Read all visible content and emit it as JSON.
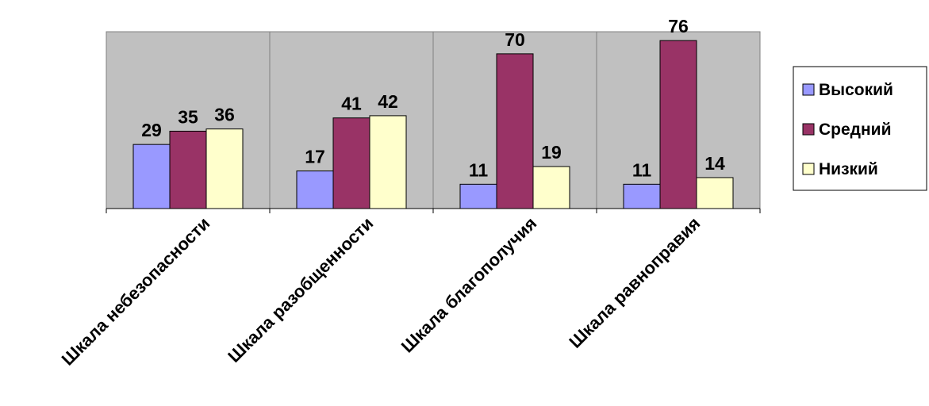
{
  "chart_data": {
    "type": "bar",
    "categories": [
      "Шкала небезопасности",
      "Шкала разобщенности",
      "Шкала благополучия",
      "Шкала равноправия"
    ],
    "series": [
      {
        "name": "Высокий",
        "values": [
          29,
          17,
          11,
          11
        ],
        "color": "#9999ff"
      },
      {
        "name": "Средний",
        "values": [
          35,
          41,
          70,
          76
        ],
        "color": "#993366"
      },
      {
        "name": "Низкий",
        "values": [
          36,
          42,
          19,
          14
        ],
        "color": "#ffffcc"
      }
    ],
    "ylim": [
      0,
      80
    ],
    "plot_background": "#c0c0c0",
    "grid": false,
    "legend_position": "right",
    "data_labels": true
  }
}
